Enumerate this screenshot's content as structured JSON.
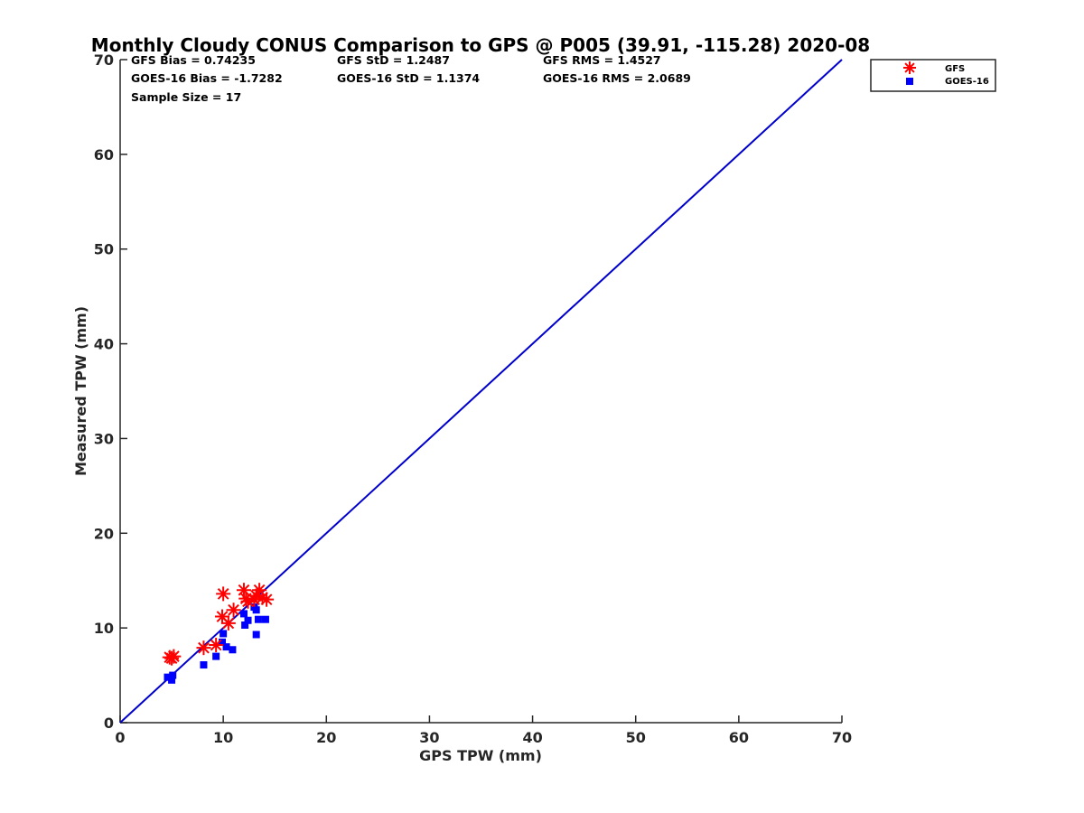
{
  "chart_data": {
    "type": "scatter",
    "title": "Monthly Cloudy CONUS Comparison to GPS @ P005 (39.91, -115.28) 2020-08",
    "xlabel": "GPS TPW (mm)",
    "ylabel": "Measured TPW (mm)",
    "xlim": [
      0,
      70
    ],
    "ylim": [
      0,
      70
    ],
    "xticks": [
      "0",
      "10",
      "20",
      "30",
      "40",
      "50",
      "60",
      "70"
    ],
    "yticks": [
      "0",
      "10",
      "20",
      "30",
      "40",
      "50",
      "60",
      "70"
    ],
    "grid": false,
    "legend_position": "top-right",
    "stats": {
      "gfs_bias": "GFS Bias = 0.74235",
      "gfs_std": "GFS StD = 1.2487",
      "gfs_rms": "GFS RMS = 1.4527",
      "goes_bias": "GOES-16 Bias = -1.7282",
      "goes_std": "GOES-16 StD = 1.1374",
      "goes_rms": "GOES-16 RMS = 2.0689",
      "sample_size": "Sample Size = 17"
    },
    "reference_line": {
      "x": [
        0,
        70
      ],
      "y": [
        0,
        70
      ],
      "color": "#0000cc"
    },
    "series": [
      {
        "name": "GFS",
        "marker": "asterisk",
        "color": "#ff0000",
        "x": [
          4.8,
          5.0,
          5.2,
          8.1,
          9.3,
          10.0,
          9.9,
          10.5,
          11.0,
          12.0,
          12.2,
          12.4,
          13.0,
          13.2,
          13.5,
          13.8,
          14.2
        ],
        "y": [
          6.9,
          6.8,
          7.0,
          7.9,
          8.2,
          13.6,
          11.2,
          10.5,
          11.9,
          14.0,
          13.1,
          12.8,
          13.0,
          13.4,
          14.0,
          13.2,
          13.0
        ]
      },
      {
        "name": "GOES-16",
        "marker": "square",
        "color": "#0000ff",
        "x": [
          4.6,
          5.0,
          5.1,
          8.1,
          9.3,
          9.9,
          10.0,
          10.3,
          10.9,
          12.0,
          12.1,
          12.4,
          13.0,
          13.2,
          13.2,
          13.4,
          14.1
        ],
        "y": [
          4.8,
          4.5,
          5.0,
          6.1,
          7.0,
          8.5,
          9.4,
          8.0,
          7.7,
          11.5,
          10.3,
          10.8,
          12.2,
          11.9,
          9.3,
          10.9,
          10.9
        ]
      }
    ]
  }
}
